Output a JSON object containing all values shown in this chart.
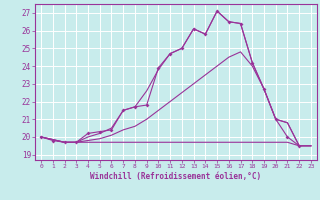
{
  "xlabel": "Windchill (Refroidissement éolien,°C)",
  "bg_color": "#c8ecec",
  "line_color": "#993399",
  "grid_color": "#ffffff",
  "xlim": [
    -0.5,
    23.5
  ],
  "ylim": [
    18.7,
    27.5
  ],
  "yticks": [
    19,
    20,
    21,
    22,
    23,
    24,
    25,
    26,
    27
  ],
  "xticks": [
    0,
    1,
    2,
    3,
    4,
    5,
    6,
    7,
    8,
    9,
    10,
    11,
    12,
    13,
    14,
    15,
    16,
    17,
    18,
    19,
    20,
    21,
    22,
    23
  ],
  "series": [
    {
      "x": [
        0,
        1,
        2,
        3,
        4,
        5,
        6,
        7,
        8,
        9,
        10,
        11,
        12,
        13,
        14,
        15,
        16,
        17,
        18,
        19,
        20,
        21,
        22
      ],
      "y": [
        20.0,
        19.8,
        19.7,
        19.7,
        20.2,
        20.3,
        20.4,
        21.5,
        21.7,
        21.8,
        23.9,
        24.7,
        25.0,
        26.1,
        25.8,
        27.1,
        26.5,
        26.4,
        24.2,
        22.7,
        21.0,
        20.0,
        19.5
      ],
      "marker": true
    },
    {
      "x": [
        0,
        2,
        3,
        4,
        5,
        6,
        7,
        8,
        9,
        10,
        11,
        12,
        13,
        14,
        15,
        16,
        17,
        18,
        19,
        20,
        21,
        22,
        23
      ],
      "y": [
        20.0,
        19.7,
        19.7,
        20.0,
        20.2,
        20.5,
        21.5,
        21.7,
        22.6,
        23.8,
        24.7,
        25.0,
        26.1,
        25.8,
        27.1,
        26.5,
        26.4,
        24.2,
        22.7,
        21.0,
        20.8,
        19.5,
        19.5
      ],
      "marker": false
    },
    {
      "x": [
        0,
        2,
        3,
        4,
        5,
        6,
        7,
        8,
        9,
        10,
        11,
        12,
        13,
        14,
        15,
        16,
        17,
        18,
        19,
        20,
        21,
        22,
        23
      ],
      "y": [
        20.0,
        19.7,
        19.7,
        19.8,
        19.9,
        20.1,
        20.4,
        20.6,
        21.0,
        21.5,
        22.0,
        22.5,
        23.0,
        23.5,
        24.0,
        24.5,
        24.8,
        24.0,
        22.7,
        21.0,
        20.8,
        19.5,
        19.5
      ],
      "marker": false
    },
    {
      "x": [
        0,
        2,
        3,
        4,
        5,
        6,
        7,
        8,
        9,
        10,
        11,
        12,
        13,
        14,
        15,
        16,
        17,
        18,
        19,
        20,
        21,
        22,
        23
      ],
      "y": [
        20.0,
        19.7,
        19.7,
        19.7,
        19.7,
        19.7,
        19.7,
        19.7,
        19.7,
        19.7,
        19.7,
        19.7,
        19.7,
        19.7,
        19.7,
        19.7,
        19.7,
        19.7,
        19.7,
        19.7,
        19.7,
        19.5,
        19.5
      ],
      "marker": false
    }
  ]
}
